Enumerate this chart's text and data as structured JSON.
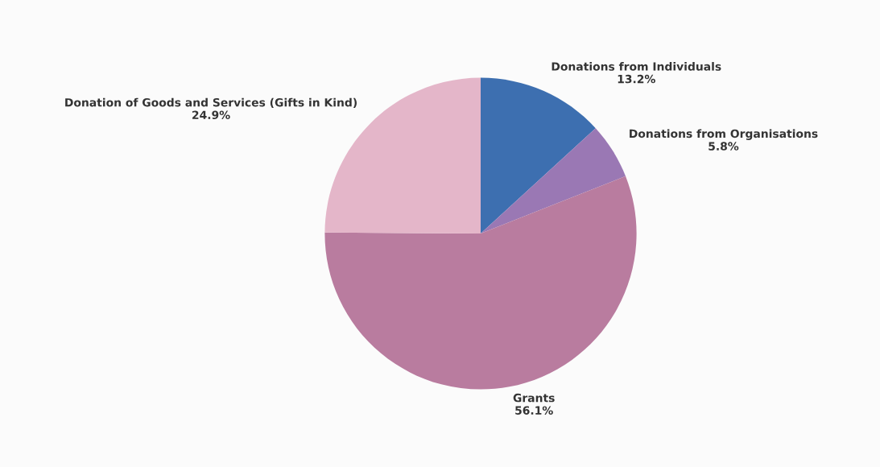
{
  "chart_data": {
    "type": "pie",
    "categories": [
      "Donations from Individuals",
      "Donations from Organisations",
      "Grants",
      "Donation of Goods and Services (Gifts in Kind)"
    ],
    "values": [
      13.2,
      5.8,
      56.1,
      24.9
    ],
    "value_labels": [
      "13.2%",
      "5.8%",
      "56.1%",
      "24.9%"
    ],
    "colors": [
      "#3d6fb0",
      "#9a78b4",
      "#b97c9f",
      "#e4b6c9"
    ]
  }
}
